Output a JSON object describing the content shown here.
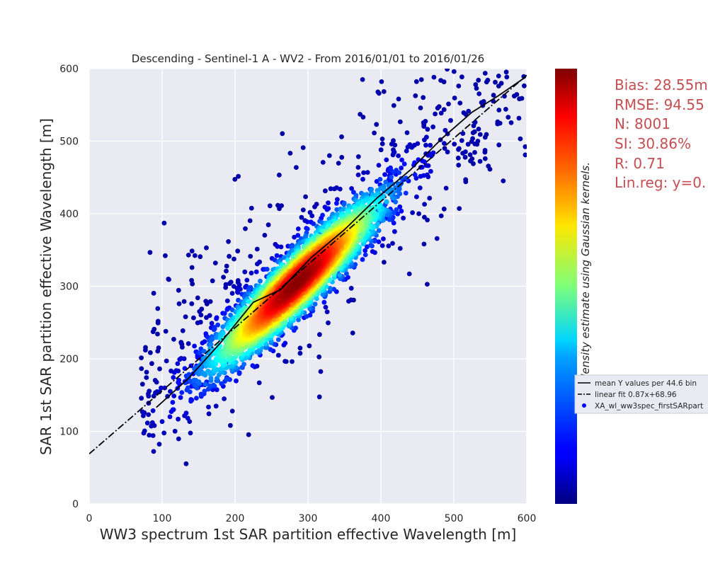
{
  "chart_data": {
    "type": "scatter",
    "title": "Descending - Sentinel-1 A - WV2 - From 2016/01/01 to 2016/01/26",
    "xlabel": "WW3 spectrum 1st SAR partition effective Wavelength [m]",
    "ylabel": "SAR 1st SAR partition effective Wavelength [m]",
    "xlim": [
      0,
      600
    ],
    "ylim": [
      0,
      600
    ],
    "xticks": [
      "0",
      "100",
      "200",
      "300",
      "400",
      "500",
      "600"
    ],
    "yticks": [
      "0",
      "100",
      "200",
      "300",
      "400",
      "500",
      "600"
    ],
    "grid": true,
    "colormap": "jet",
    "colorbar_label": "point density estimate using Gaussian kernels.",
    "density_core": {
      "x": 285,
      "y": 305
    },
    "series": [
      {
        "name": "mean Y values per 44.6 bin",
        "style": "solid",
        "color": "#000000",
        "points": [
          [
            92,
            133
          ],
          [
            135,
            172
          ],
          [
            180,
            222
          ],
          [
            225,
            278
          ],
          [
            262,
            295
          ],
          [
            305,
            340
          ],
          [
            350,
            378
          ],
          [
            395,
            422
          ],
          [
            440,
            460
          ],
          [
            485,
            505
          ],
          [
            525,
            540
          ],
          [
            560,
            562
          ],
          [
            598,
            588
          ]
        ]
      },
      {
        "name": "linear fit 0.87x+68.96",
        "style": "dashdot",
        "color": "#000000",
        "slope": 0.87,
        "intercept": 68.96
      },
      {
        "name": "XA_wl_ww3spec_firstSARpart",
        "style": "markers",
        "count": 8001
      }
    ],
    "legend_position": "right-of-colorbar",
    "stats": {
      "bias": "Bias: 28.55m",
      "rmse": "RMSE: 94.55",
      "n": "N: 8001",
      "si": "SI: 30.86%",
      "r": "R: 0.71",
      "linreg": "Lin.reg: y=0."
    },
    "colors": {
      "plot_bg": "#EAEAF2",
      "grid": "#FFFFFF",
      "stats_text": "#C44E52",
      "legend_bg": "#EAEAF2"
    }
  }
}
